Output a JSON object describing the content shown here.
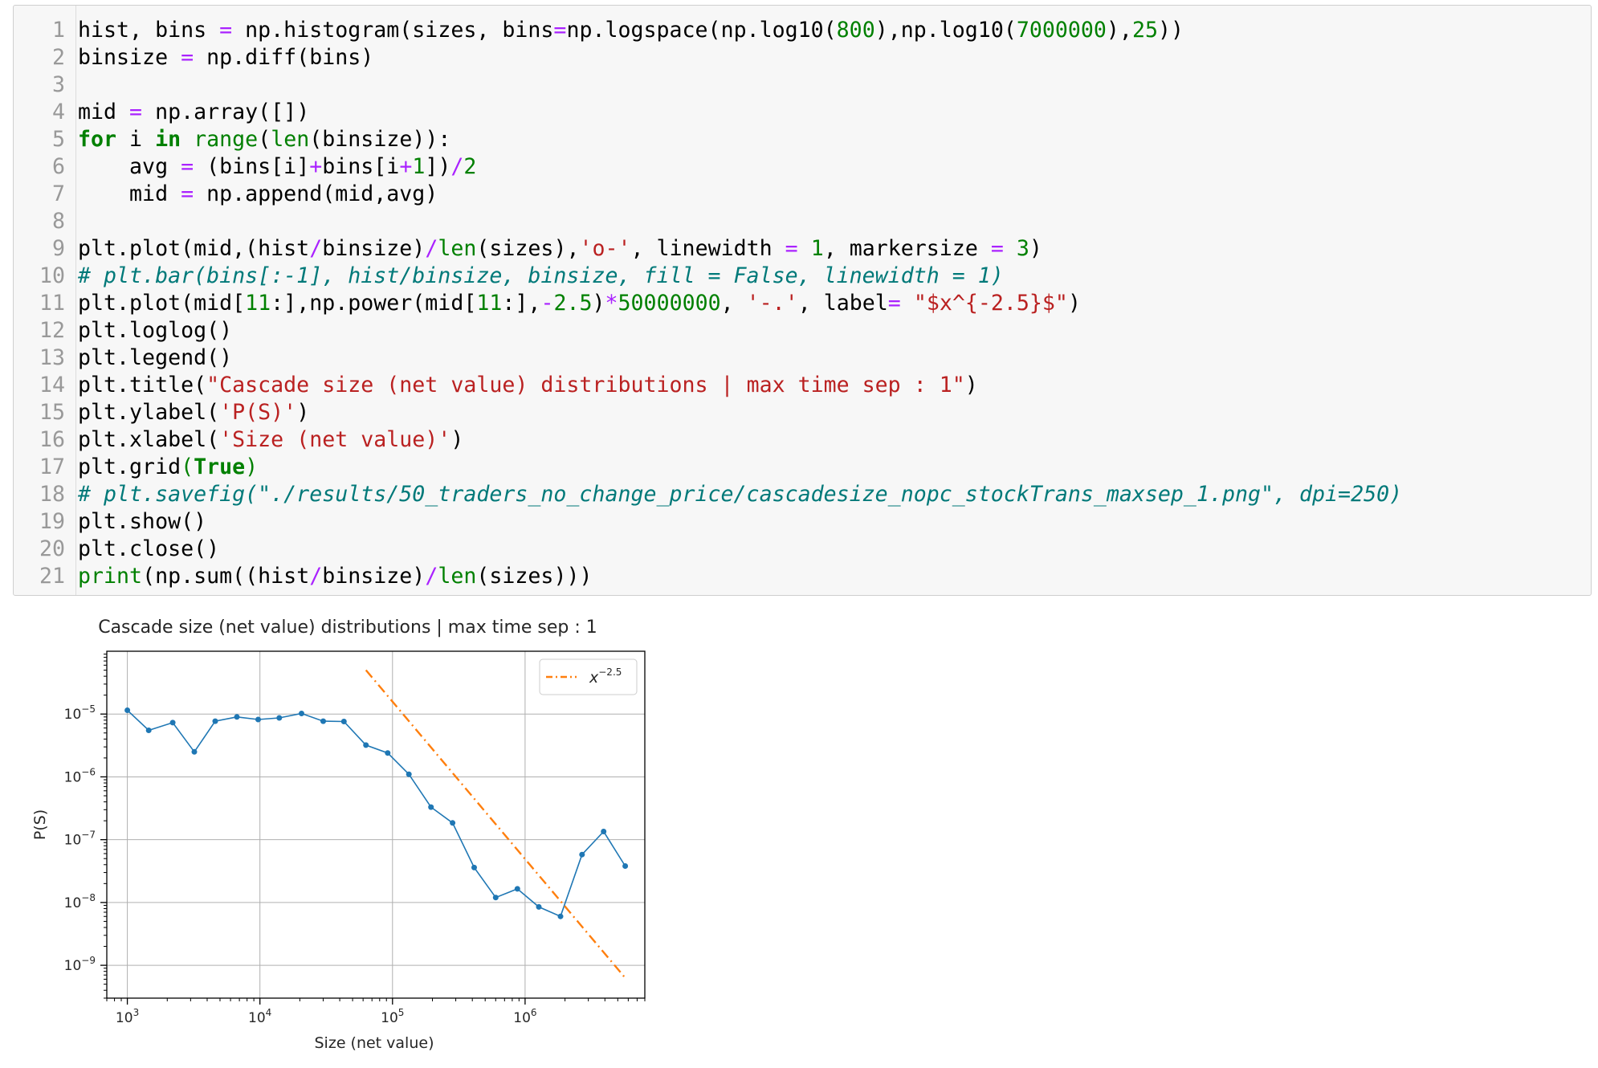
{
  "code_cell": {
    "lines": [
      {
        "n": "1",
        "tokens": [
          {
            "t": "hist, bins ",
            "c": ""
          },
          {
            "t": "=",
            "c": "op"
          },
          {
            "t": " np.histogram(sizes, bins",
            "c": ""
          },
          {
            "t": "=",
            "c": "op"
          },
          {
            "t": "np.logspace(np.log10(",
            "c": ""
          },
          {
            "t": "800",
            "c": "num"
          },
          {
            "t": "),np.log10(",
            "c": ""
          },
          {
            "t": "7000000",
            "c": "num"
          },
          {
            "t": "),",
            "c": ""
          },
          {
            "t": "25",
            "c": "num"
          },
          {
            "t": "))",
            "c": ""
          }
        ]
      },
      {
        "n": "2",
        "tokens": [
          {
            "t": "binsize ",
            "c": ""
          },
          {
            "t": "=",
            "c": "op"
          },
          {
            "t": " np.diff(bins)",
            "c": ""
          }
        ]
      },
      {
        "n": "3",
        "tokens": []
      },
      {
        "n": "4",
        "tokens": [
          {
            "t": "mid ",
            "c": ""
          },
          {
            "t": "=",
            "c": "op"
          },
          {
            "t": " np.array([])",
            "c": ""
          }
        ]
      },
      {
        "n": "5",
        "tokens": [
          {
            "t": "for",
            "c": "kw"
          },
          {
            "t": " i ",
            "c": ""
          },
          {
            "t": "in",
            "c": "kw"
          },
          {
            "t": " ",
            "c": ""
          },
          {
            "t": "range",
            "c": "bi"
          },
          {
            "t": "(",
            "c": ""
          },
          {
            "t": "len",
            "c": "bi"
          },
          {
            "t": "(binsize)):",
            "c": ""
          }
        ]
      },
      {
        "n": "6",
        "tokens": [
          {
            "t": "    avg ",
            "c": ""
          },
          {
            "t": "=",
            "c": "op"
          },
          {
            "t": " (bins[i]",
            "c": ""
          },
          {
            "t": "+",
            "c": "op"
          },
          {
            "t": "bins[i",
            "c": ""
          },
          {
            "t": "+",
            "c": "op"
          },
          {
            "t": "1",
            "c": "num"
          },
          {
            "t": "])",
            "c": ""
          },
          {
            "t": "/",
            "c": "op"
          },
          {
            "t": "2",
            "c": "num"
          }
        ]
      },
      {
        "n": "7",
        "tokens": [
          {
            "t": "    mid ",
            "c": ""
          },
          {
            "t": "=",
            "c": "op"
          },
          {
            "t": " np.append(mid,avg)",
            "c": ""
          }
        ]
      },
      {
        "n": "8",
        "tokens": []
      },
      {
        "n": "9",
        "tokens": [
          {
            "t": "plt.plot(mid,(hist",
            "c": ""
          },
          {
            "t": "/",
            "c": "op"
          },
          {
            "t": "binsize)",
            "c": ""
          },
          {
            "t": "/",
            "c": "op"
          },
          {
            "t": "len",
            "c": "bi"
          },
          {
            "t": "(sizes),",
            "c": ""
          },
          {
            "t": "'o-'",
            "c": "str"
          },
          {
            "t": ", linewidth ",
            "c": ""
          },
          {
            "t": "=",
            "c": "op"
          },
          {
            "t": " ",
            "c": ""
          },
          {
            "t": "1",
            "c": "num"
          },
          {
            "t": ", markersize ",
            "c": ""
          },
          {
            "t": "=",
            "c": "op"
          },
          {
            "t": " ",
            "c": ""
          },
          {
            "t": "3",
            "c": "num"
          },
          {
            "t": ")",
            "c": ""
          }
        ]
      },
      {
        "n": "10",
        "tokens": [
          {
            "t": "# plt.bar(bins[:-1], hist/binsize, binsize, fill = False, linewidth = 1)",
            "c": "com"
          }
        ]
      },
      {
        "n": "11",
        "tokens": [
          {
            "t": "plt.plot(mid[",
            "c": ""
          },
          {
            "t": "11",
            "c": "num"
          },
          {
            "t": ":],np.power(mid[",
            "c": ""
          },
          {
            "t": "11",
            "c": "num"
          },
          {
            "t": ":],",
            "c": ""
          },
          {
            "t": "-",
            "c": "op"
          },
          {
            "t": "2.5",
            "c": "num"
          },
          {
            "t": ")",
            "c": ""
          },
          {
            "t": "*",
            "c": "op"
          },
          {
            "t": "50000000",
            "c": "num"
          },
          {
            "t": ", ",
            "c": ""
          },
          {
            "t": "'-.'",
            "c": "str"
          },
          {
            "t": ", label",
            "c": ""
          },
          {
            "t": "=",
            "c": "op"
          },
          {
            "t": " ",
            "c": ""
          },
          {
            "t": "\"$x^{-2.5}$\"",
            "c": "str"
          },
          {
            "t": ")",
            "c": ""
          }
        ]
      },
      {
        "n": "12",
        "tokens": [
          {
            "t": "plt.loglog()",
            "c": ""
          }
        ]
      },
      {
        "n": "13",
        "tokens": [
          {
            "t": "plt.legend()",
            "c": ""
          }
        ]
      },
      {
        "n": "14",
        "tokens": [
          {
            "t": "plt.title(",
            "c": ""
          },
          {
            "t": "\"Cascade size (net value) distributions | max time sep : 1\"",
            "c": "str"
          },
          {
            "t": ")",
            "c": ""
          }
        ]
      },
      {
        "n": "15",
        "tokens": [
          {
            "t": "plt.ylabel(",
            "c": ""
          },
          {
            "t": "'P(S)'",
            "c": "str"
          },
          {
            "t": ")",
            "c": ""
          }
        ]
      },
      {
        "n": "16",
        "tokens": [
          {
            "t": "plt.xlabel(",
            "c": ""
          },
          {
            "t": "'Size (net value)'",
            "c": "str"
          },
          {
            "t": ")",
            "c": ""
          }
        ]
      },
      {
        "n": "17",
        "tokens": [
          {
            "t": "plt.grid",
            "c": ""
          },
          {
            "t": "(",
            "c": "bi"
          },
          {
            "t": "True",
            "c": "kw"
          },
          {
            "t": ")",
            "c": "bi"
          }
        ]
      },
      {
        "n": "18",
        "tokens": [
          {
            "t": "# plt.savefig(\"./results/50_traders_no_change_price/cascadesize_nopc_stockTrans_maxsep_1.png\", dpi=250)",
            "c": "com"
          }
        ]
      },
      {
        "n": "19",
        "tokens": [
          {
            "t": "plt.show()",
            "c": ""
          }
        ]
      },
      {
        "n": "20",
        "tokens": [
          {
            "t": "plt.close()",
            "c": ""
          }
        ]
      },
      {
        "n": "21",
        "tokens": [
          {
            "t": "print",
            "c": "bi"
          },
          {
            "t": "(np.sum((hist",
            "c": ""
          },
          {
            "t": "/",
            "c": "op"
          },
          {
            "t": "binsize)",
            "c": ""
          },
          {
            "t": "/",
            "c": "op"
          },
          {
            "t": "len",
            "c": "bi"
          },
          {
            "t": "(sizes)))",
            "c": ""
          }
        ]
      }
    ]
  },
  "chart_data": {
    "type": "line",
    "title": "Cascade size (net value) distributions | max time sep : 1",
    "xlabel": "Size (net value)",
    "ylabel": "P(S)",
    "xscale": "log",
    "yscale": "log",
    "xlim": [
      700,
      8000000
    ],
    "ylim": [
      3e-10,
      0.0001
    ],
    "grid": true,
    "legend_position": "top-right",
    "x_ticks": [
      {
        "base": "10",
        "exp": "3",
        "value": 1000
      },
      {
        "base": "10",
        "exp": "4",
        "value": 10000
      },
      {
        "base": "10",
        "exp": "5",
        "value": 100000
      },
      {
        "base": "10",
        "exp": "6",
        "value": 1000000
      }
    ],
    "y_ticks": [
      {
        "base": "10",
        "exp": "−5",
        "value": 1e-05
      },
      {
        "base": "10",
        "exp": "−6",
        "value": 1e-06
      },
      {
        "base": "10",
        "exp": "−7",
        "value": 1e-07
      },
      {
        "base": "10",
        "exp": "−8",
        "value": 1e-08
      },
      {
        "base": "10",
        "exp": "−9",
        "value": 1e-09
      }
    ],
    "series": [
      {
        "name": "",
        "color": "#1f77b4",
        "style": "o-",
        "x": [
          1000,
          1450,
          2200,
          3200,
          4600,
          6700,
          9700,
          14000,
          20600,
          30000,
          43000,
          63000,
          92000,
          133000,
          195000,
          284000,
          413000,
          600000,
          875000,
          1270000,
          1850000,
          2690000,
          3910000,
          5690000
        ],
        "y": [
          1.15e-05,
          5.5e-06,
          7.3e-06,
          2.5e-06,
          7.7e-06,
          9e-06,
          8.2e-06,
          8.7e-06,
          1.02e-05,
          7.7e-06,
          7.6e-06,
          3.2e-06,
          2.4e-06,
          1.1e-06,
          3.3e-07,
          1.85e-07,
          3.6e-08,
          1.2e-08,
          1.65e-08,
          8.5e-09,
          6e-09,
          5.8e-08,
          1.35e-07,
          3.8e-08
        ]
      },
      {
        "name": "x^{-2.5}",
        "label_base": "x",
        "label_exp": "−2.5",
        "color": "#ff7f0e",
        "style": "-.",
        "x": [
          63000,
          5690000
        ],
        "y": [
          5e-05,
          6.3e-10
        ]
      }
    ]
  }
}
